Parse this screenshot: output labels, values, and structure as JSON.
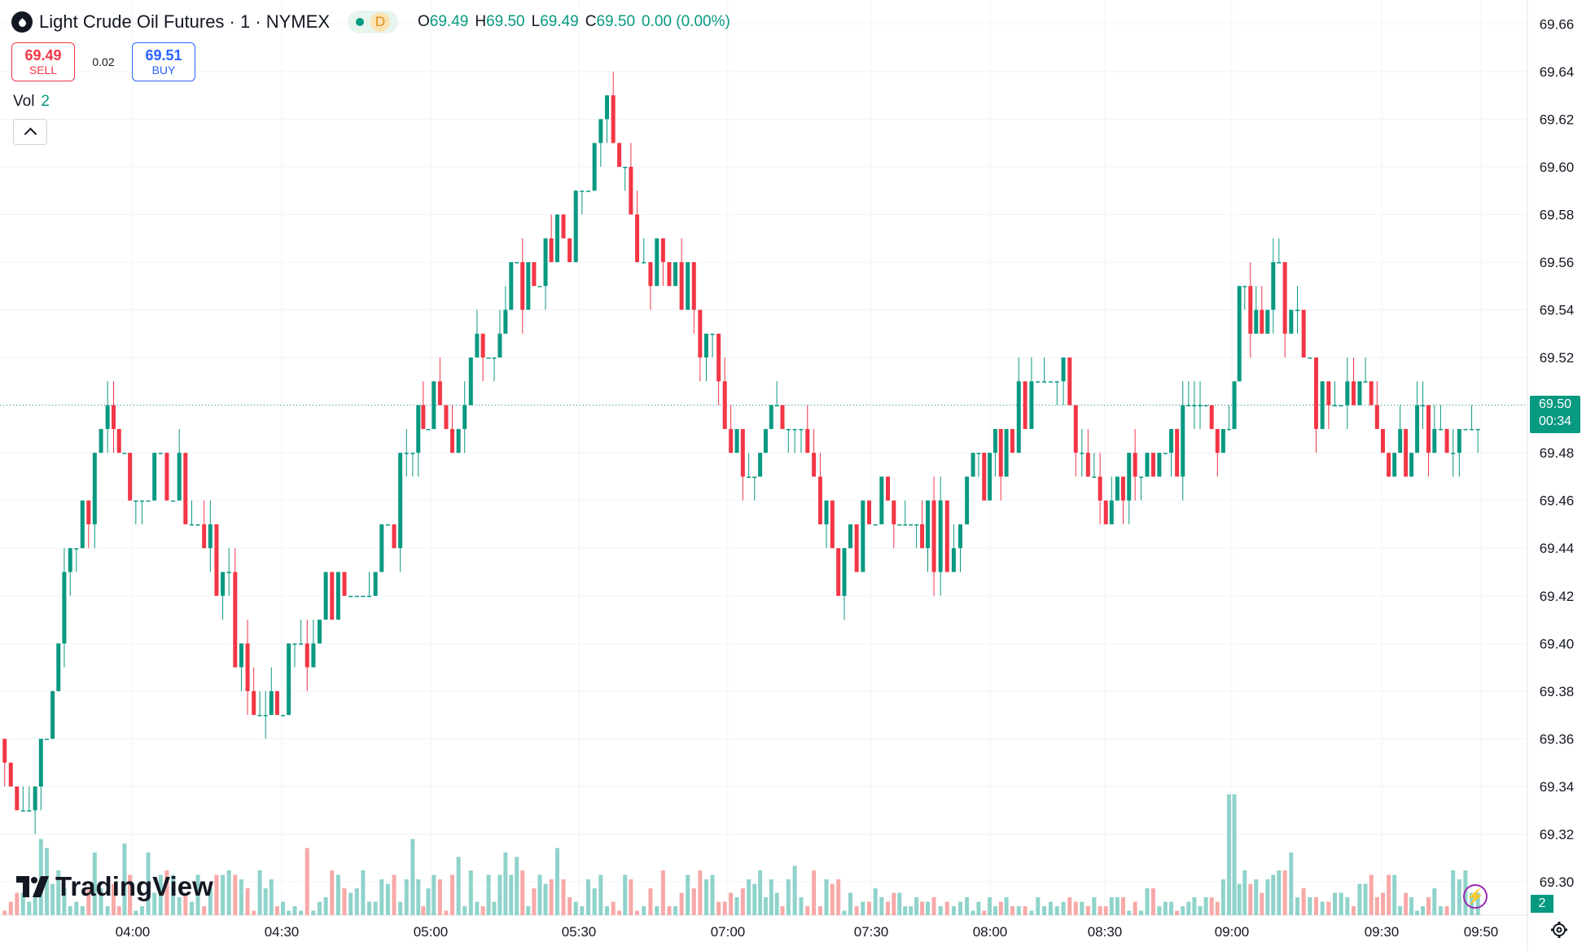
{
  "header": {
    "title": "Light Crude Oil Futures · 1 · NYMEX",
    "status_letter": "D",
    "ohlc": {
      "o_label": "O",
      "o": "69.49",
      "h_label": "H",
      "h": "69.50",
      "l_label": "L",
      "l": "69.49",
      "c_label": "C",
      "c": "69.50",
      "change": "0.00 (0.00%)"
    }
  },
  "trade": {
    "sell_price": "69.49",
    "sell_label": "SELL",
    "spread": "0.02",
    "buy_price": "69.51",
    "buy_label": "BUY"
  },
  "volume_legend": {
    "label": "Vol",
    "value": "2"
  },
  "branding": {
    "logo_text": "TradingView"
  },
  "last_price": {
    "price": "69.50",
    "countdown": "00:34"
  },
  "last_volume": "2",
  "colors": {
    "up": "#089981",
    "down": "#f23645",
    "volume_up": "#8fd3cb",
    "volume_down": "#f7a9a7",
    "grid": "#f0f3fa"
  },
  "chart_data": {
    "type": "candlestick",
    "instrument": "Light Crude Oil Futures",
    "interval": "1",
    "exchange": "NYMEX",
    "y_axis": {
      "ticks": [
        "69.66",
        "69.64",
        "69.62",
        "69.60",
        "69.58",
        "69.56",
        "69.54",
        "69.52",
        "69.50",
        "69.48",
        "69.46",
        "69.44",
        "69.42",
        "69.40",
        "69.38",
        "69.36",
        "69.34",
        "69.32",
        "69.30"
      ],
      "range": [
        69.286,
        69.67
      ],
      "side": "right"
    },
    "x_axis": {
      "ticks": [
        "04:00",
        "04:30",
        "05:00",
        "05:30",
        "07:00",
        "07:30",
        "08:00",
        "08:30",
        "09:00",
        "09:30",
        "09:50"
      ]
    },
    "series": [
      {
        "name": "Price path (approx. close)",
        "points": [
          [
            "03:30",
            69.36
          ],
          [
            "03:37",
            69.33
          ],
          [
            "03:45",
            69.42
          ],
          [
            "03:52",
            69.47
          ],
          [
            "03:55",
            69.5
          ],
          [
            "04:00",
            69.46
          ],
          [
            "04:05",
            69.47
          ],
          [
            "04:10",
            69.47
          ],
          [
            "04:15",
            69.44
          ],
          [
            "04:20",
            69.42
          ],
          [
            "04:25",
            69.37
          ],
          [
            "04:32",
            69.39
          ],
          [
            "04:37",
            69.41
          ],
          [
            "04:42",
            69.43
          ],
          [
            "04:47",
            69.41
          ],
          [
            "04:52",
            69.45
          ],
          [
            "04:57",
            69.48
          ],
          [
            "05:00",
            69.5
          ],
          [
            "05:05",
            69.49
          ],
          [
            "05:10",
            69.52
          ],
          [
            "05:18",
            69.55
          ],
          [
            "05:25",
            69.56
          ],
          [
            "05:30",
            69.58
          ],
          [
            "05:35",
            69.6
          ],
          [
            "05:45",
            69.62
          ],
          [
            "05:52",
            69.58
          ],
          [
            "06:00",
            69.55
          ],
          [
            "06:05",
            69.58
          ],
          [
            "07:00",
            69.5
          ],
          [
            "07:05",
            69.48
          ],
          [
            "07:12",
            69.5
          ],
          [
            "07:20",
            69.46
          ],
          [
            "07:25",
            69.43
          ],
          [
            "07:35",
            69.47
          ],
          [
            "07:45",
            69.45
          ],
          [
            "07:50",
            69.44
          ],
          [
            "07:55",
            69.47
          ],
          [
            "08:05",
            69.48
          ],
          [
            "08:10",
            69.5
          ],
          [
            "08:20",
            69.51
          ],
          [
            "08:28",
            69.47
          ],
          [
            "08:35",
            69.46
          ],
          [
            "08:45",
            69.48
          ],
          [
            "09:00",
            69.5
          ],
          [
            "09:02",
            69.54
          ],
          [
            "09:10",
            69.55
          ],
          [
            "09:15",
            69.52
          ],
          [
            "09:20",
            69.49
          ],
          [
            "09:25",
            69.51
          ],
          [
            "09:32",
            69.48
          ],
          [
            "09:40",
            69.49
          ],
          [
            "09:45",
            69.48
          ],
          [
            "09:50",
            69.5
          ]
        ]
      }
    ],
    "volume": {
      "label": "Vol",
      "last": 2,
      "max_spike": {
        "time": "09:00",
        "approx_value": 27
      }
    },
    "last_price": 69.5,
    "grid": true
  }
}
